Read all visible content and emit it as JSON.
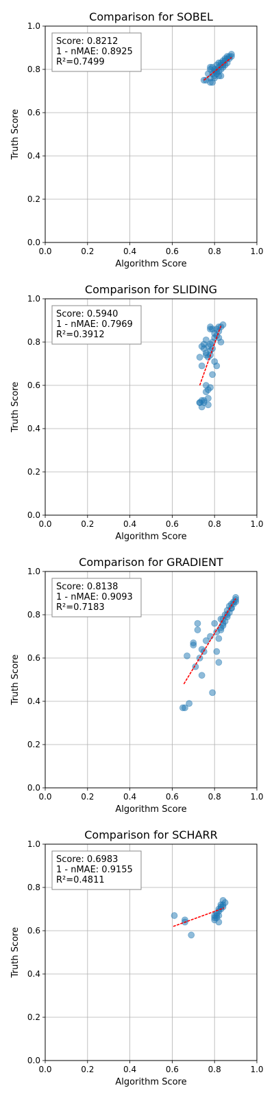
{
  "chart_data": [
    {
      "type": "scatter",
      "title": "Comparison for SOBEL",
      "xlabel": "Algorithm Score",
      "ylabel": "Truth Score",
      "xlim": [
        0.0,
        1.0
      ],
      "ylim": [
        0.0,
        1.0
      ],
      "xticks": [
        "0.0",
        "0.2",
        "0.4",
        "0.6",
        "0.8",
        "1.0"
      ],
      "yticks": [
        "0.0",
        "0.2",
        "0.4",
        "0.6",
        "0.8",
        "1.0"
      ],
      "grid": true,
      "annotation": [
        "Score: 0.8212",
        "1 - nMAE: 0.8925",
        "R²=0.7499"
      ],
      "points": {
        "x": [
          0.75,
          0.76,
          0.77,
          0.78,
          0.78,
          0.79,
          0.79,
          0.8,
          0.8,
          0.81,
          0.81,
          0.81,
          0.82,
          0.82,
          0.82,
          0.83,
          0.83,
          0.83,
          0.84,
          0.84,
          0.84,
          0.85,
          0.85,
          0.85,
          0.86,
          0.86,
          0.86,
          0.87,
          0.87,
          0.88,
          0.88,
          0.78,
          0.79,
          0.8,
          0.82,
          0.83,
          0.78,
          0.8,
          0.84,
          0.81
        ],
        "y": [
          0.75,
          0.75,
          0.78,
          0.74,
          0.76,
          0.74,
          0.78,
          0.77,
          0.79,
          0.78,
          0.8,
          0.82,
          0.79,
          0.81,
          0.83,
          0.8,
          0.82,
          0.83,
          0.81,
          0.83,
          0.84,
          0.82,
          0.84,
          0.85,
          0.83,
          0.85,
          0.86,
          0.85,
          0.86,
          0.86,
          0.87,
          0.81,
          0.81,
          0.8,
          0.77,
          0.77,
          0.8,
          0.76,
          0.82,
          0.79
        ]
      },
      "fit": {
        "x": [
          0.75,
          0.88
        ],
        "y": [
          0.75,
          0.855
        ]
      }
    },
    {
      "type": "scatter",
      "title": "Comparison for SLIDING",
      "xlabel": "Algorithm Score",
      "ylabel": "Truth Score",
      "xlim": [
        0.0,
        1.0
      ],
      "ylim": [
        0.0,
        1.0
      ],
      "xticks": [
        "0.0",
        "0.2",
        "0.4",
        "0.6",
        "0.8",
        "1.0"
      ],
      "yticks": [
        "0.0",
        "0.2",
        "0.4",
        "0.6",
        "0.8",
        "1.0"
      ],
      "grid": true,
      "annotation": [
        "Score: 0.5940",
        "1 - nMAE: 0.7969",
        "R²=0.3912"
      ],
      "points": {
        "x": [
          0.73,
          0.74,
          0.74,
          0.75,
          0.75,
          0.76,
          0.76,
          0.77,
          0.77,
          0.78,
          0.78,
          0.78,
          0.79,
          0.79,
          0.8,
          0.8,
          0.81,
          0.81,
          0.82,
          0.82,
          0.83,
          0.83,
          0.84,
          0.78,
          0.78,
          0.79,
          0.76,
          0.77,
          0.78,
          0.75,
          0.74,
          0.73,
          0.74,
          0.76,
          0.77,
          0.8,
          0.81,
          0.82,
          0.79,
          0.76,
          0.73,
          0.75,
          0.77
        ],
        "y": [
          0.52,
          0.5,
          0.53,
          0.52,
          0.79,
          0.81,
          0.75,
          0.78,
          0.73,
          0.74,
          0.76,
          0.79,
          0.77,
          0.8,
          0.82,
          0.84,
          0.83,
          0.86,
          0.85,
          0.87,
          0.87,
          0.8,
          0.88,
          0.86,
          0.87,
          0.86,
          0.6,
          0.58,
          0.59,
          0.53,
          0.69,
          0.73,
          0.78,
          0.74,
          0.54,
          0.71,
          0.69,
          0.82,
          0.65,
          0.57,
          0.52,
          0.77,
          0.51
        ]
      },
      "fit": {
        "x": [
          0.73,
          0.83
        ],
        "y": [
          0.6,
          0.875
        ]
      }
    },
    {
      "type": "scatter",
      "title": "Comparison for GRADIENT",
      "xlabel": "Algorithm Score",
      "ylabel": "Truth Score",
      "xlim": [
        0.0,
        1.0
      ],
      "ylim": [
        0.0,
        1.0
      ],
      "xticks": [
        "0.0",
        "0.2",
        "0.4",
        "0.6",
        "0.8",
        "1.0"
      ],
      "yticks": [
        "0.0",
        "0.2",
        "0.4",
        "0.6",
        "0.8",
        "1.0"
      ],
      "grid": true,
      "annotation": [
        "Score: 0.8138",
        "1 - nMAE: 0.9093",
        "R²=0.7183"
      ],
      "points": {
        "x": [
          0.65,
          0.66,
          0.68,
          0.67,
          0.7,
          0.7,
          0.71,
          0.72,
          0.72,
          0.73,
          0.74,
          0.74,
          0.75,
          0.76,
          0.78,
          0.79,
          0.8,
          0.81,
          0.82,
          0.82,
          0.83,
          0.83,
          0.84,
          0.84,
          0.85,
          0.85,
          0.86,
          0.86,
          0.87,
          0.87,
          0.88,
          0.88,
          0.89,
          0.89,
          0.9,
          0.9,
          0.9,
          0.81,
          0.83,
          0.84,
          0.86,
          0.88
        ],
        "y": [
          0.37,
          0.37,
          0.39,
          0.61,
          0.67,
          0.66,
          0.56,
          0.73,
          0.76,
          0.6,
          0.52,
          0.64,
          0.63,
          0.68,
          0.7,
          0.44,
          0.76,
          0.63,
          0.58,
          0.69,
          0.74,
          0.78,
          0.75,
          0.78,
          0.77,
          0.8,
          0.79,
          0.82,
          0.81,
          0.84,
          0.83,
          0.85,
          0.85,
          0.86,
          0.86,
          0.87,
          0.88,
          0.72,
          0.73,
          0.76,
          0.8,
          0.83
        ]
      },
      "fit": {
        "x": [
          0.655,
          0.9
        ],
        "y": [
          0.48,
          0.875
        ]
      }
    },
    {
      "type": "scatter",
      "title": "Comparison for SCHARR",
      "xlabel": "Algorithm Score",
      "ylabel": "Truth Score",
      "xlim": [
        0.0,
        1.0
      ],
      "ylim": [
        0.0,
        1.0
      ],
      "xticks": [
        "0.0",
        "0.2",
        "0.4",
        "0.6",
        "0.8",
        "1.0"
      ],
      "yticks": [
        "0.0",
        "0.2",
        "0.4",
        "0.6",
        "0.8",
        "1.0"
      ],
      "grid": true,
      "annotation": [
        "Score: 0.6983",
        "1 - nMAE: 0.9155",
        "R²=0.4811"
      ],
      "points": {
        "x": [
          0.61,
          0.66,
          0.66,
          0.69,
          0.8,
          0.8,
          0.81,
          0.81,
          0.82,
          0.82,
          0.82,
          0.83,
          0.83,
          0.83,
          0.84,
          0.84,
          0.84,
          0.85,
          0.81,
          0.82,
          0.8
        ],
        "y": [
          0.67,
          0.65,
          0.64,
          0.58,
          0.66,
          0.65,
          0.68,
          0.66,
          0.7,
          0.69,
          0.67,
          0.71,
          0.7,
          0.72,
          0.72,
          0.71,
          0.74,
          0.73,
          0.67,
          0.64,
          0.67
        ]
      },
      "fit": {
        "x": [
          0.605,
          0.845
        ],
        "y": [
          0.62,
          0.705
        ]
      }
    }
  ]
}
